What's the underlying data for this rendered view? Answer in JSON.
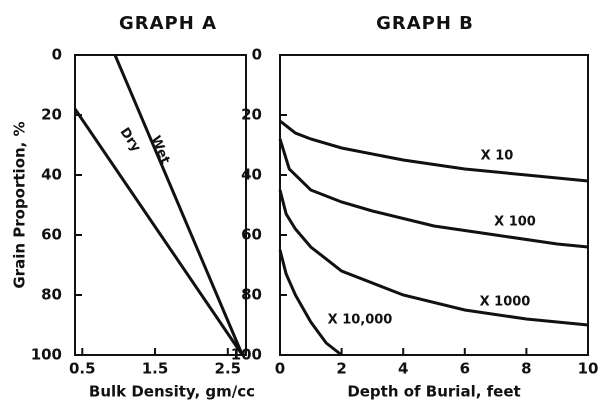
{
  "chart_data": [
    {
      "type": "line",
      "title": "GRAPH A",
      "x_label": "Bulk Density, gm/cc",
      "y_label": "Grain Proportion, %",
      "xlim": [
        0.4,
        2.75
      ],
      "xticks": [
        0.5,
        1.5,
        2.5
      ],
      "ylim": [
        100,
        0
      ],
      "yticks": [
        0,
        20,
        40,
        60,
        80,
        100
      ],
      "series": [
        {
          "name": "Dry",
          "color": "#111111",
          "x": [
            0.4,
            2.7
          ],
          "values": [
            18,
            100
          ]
        },
        {
          "name": "Wet",
          "color": "#111111",
          "x": [
            0.95,
            2.7
          ],
          "values": [
            0,
            100
          ]
        }
      ]
    },
    {
      "type": "line",
      "title": "GRAPH B",
      "x_label": "Depth of Burial, feet",
      "xlim": [
        0,
        10
      ],
      "xticks": [
        0,
        2,
        4,
        6,
        8,
        10
      ],
      "ylim": [
        100,
        0
      ],
      "yticks": [
        0,
        20,
        40,
        60,
        80,
        100
      ],
      "series": [
        {
          "name": "X 10",
          "color": "#111111",
          "x": [
            0,
            0.5,
            1,
            2,
            4,
            6,
            8,
            10
          ],
          "values": [
            22,
            26,
            28,
            31,
            35,
            38,
            40,
            42
          ]
        },
        {
          "name": "X 100",
          "color": "#111111",
          "x": [
            0,
            0.3,
            1,
            2,
            3,
            5,
            7,
            9,
            10
          ],
          "values": [
            28,
            38,
            45,
            49,
            52,
            57,
            60,
            63,
            64
          ]
        },
        {
          "name": "X 1000",
          "color": "#111111",
          "x": [
            0,
            0.2,
            0.5,
            1,
            2,
            4,
            6,
            8,
            10
          ],
          "values": [
            45,
            53,
            58,
            64,
            72,
            80,
            85,
            88,
            90
          ]
        },
        {
          "name": "X 10,000",
          "color": "#111111",
          "x": [
            0,
            0.2,
            0.5,
            1,
            1.5,
            2
          ],
          "values": [
            65,
            73,
            80,
            89,
            96,
            100
          ]
        }
      ]
    }
  ]
}
